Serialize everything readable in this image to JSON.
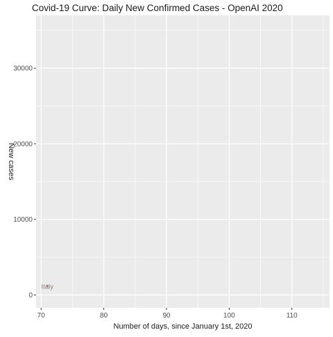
{
  "chart_data": {
    "type": "scatter",
    "title": "Covid-19 Curve: Daily New Confirmed Cases - OpenAI 2020",
    "xlabel": "Number of days, since January 1st, 2020",
    "ylabel": "New cases",
    "xlim": [
      69.2,
      116
    ],
    "ylim": [
      -1700,
      37000
    ],
    "x_ticks": [
      70,
      80,
      90,
      100,
      110
    ],
    "y_ticks": [
      0,
      10000,
      20000,
      30000
    ],
    "grid": true,
    "legend": "none",
    "background_color": "#ebebeb",
    "grid_color": "#ffffff",
    "point_color": "#f8766d",
    "label_color": "#7f7f7f",
    "series": [
      {
        "points": [
          {
            "x": 71,
            "y": 1200,
            "label": "Italy"
          }
        ]
      }
    ]
  }
}
